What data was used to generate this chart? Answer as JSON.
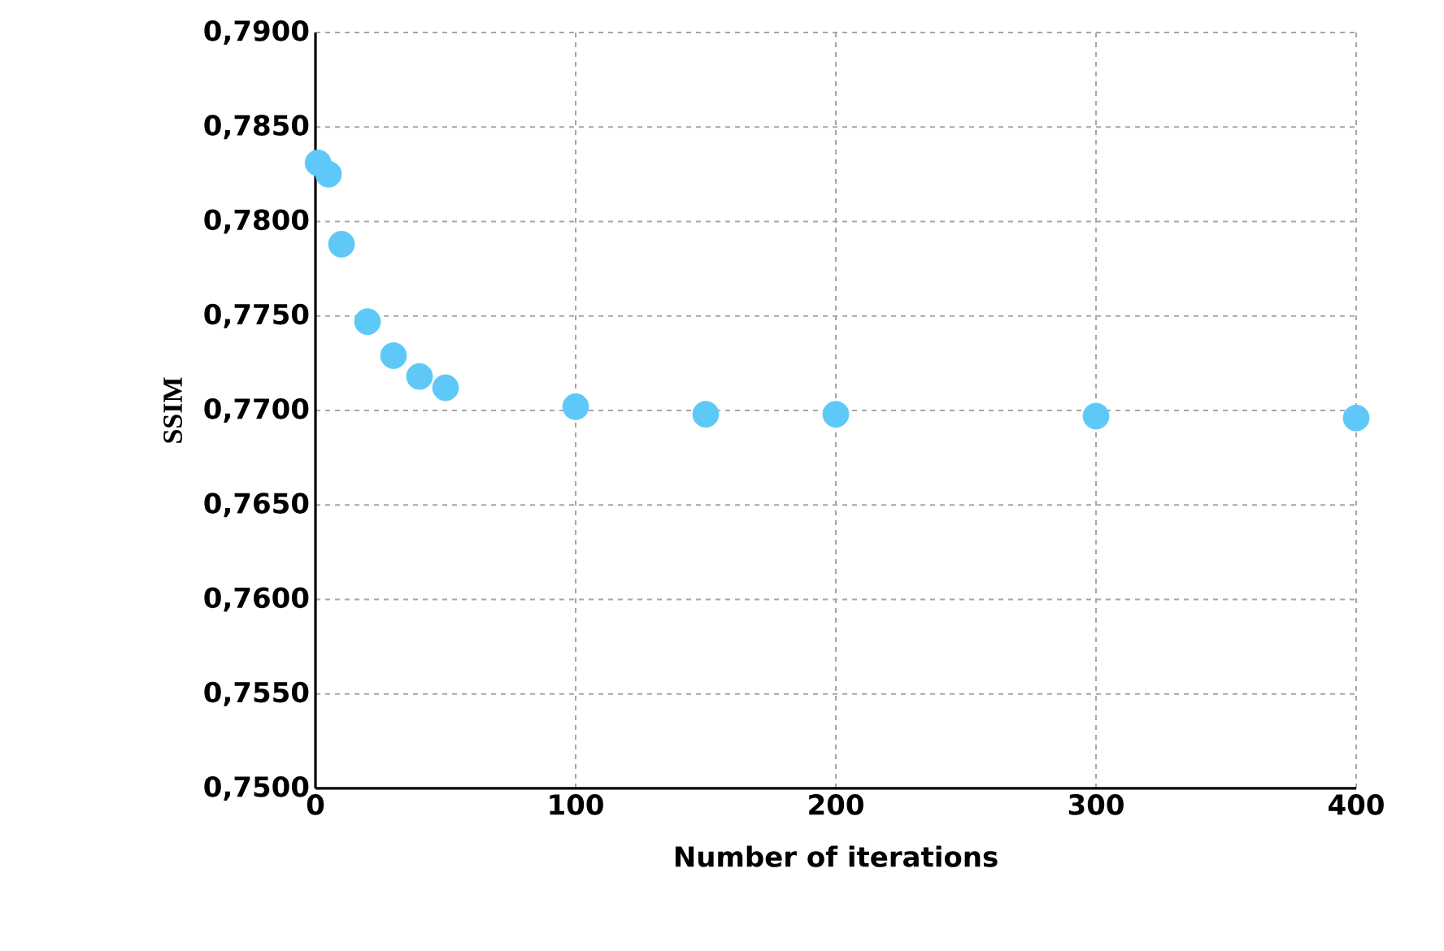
{
  "chart_data": {
    "type": "scatter",
    "xlabel": "Number of iterations",
    "ylabel": "SSIM",
    "x": [
      1,
      5,
      10,
      20,
      30,
      40,
      50,
      100,
      150,
      200,
      300,
      400
    ],
    "values": [
      0.7831,
      0.7825,
      0.7788,
      0.7747,
      0.7729,
      0.7718,
      0.7712,
      0.7702,
      0.7698,
      0.7698,
      0.7697,
      0.7696
    ],
    "color": "#5ec8f8",
    "marker": "circle",
    "grid": true,
    "xlim": [
      0,
      400
    ],
    "xticks": [
      0,
      100,
      200,
      300,
      400
    ],
    "ylim": [
      0.75,
      0.79
    ],
    "yticks": [
      {
        "value": 0.75,
        "label": "0,7500"
      },
      {
        "value": 0.755,
        "label": "0,7550"
      },
      {
        "value": 0.76,
        "label": "0,7600"
      },
      {
        "value": 0.765,
        "label": "0,7650"
      },
      {
        "value": 0.77,
        "label": "0,7700"
      },
      {
        "value": 0.775,
        "label": "0,7750"
      },
      {
        "value": 0.78,
        "label": "0,7800"
      },
      {
        "value": 0.785,
        "label": "0,7850"
      },
      {
        "value": 0.79,
        "label": "0,7900"
      }
    ]
  }
}
